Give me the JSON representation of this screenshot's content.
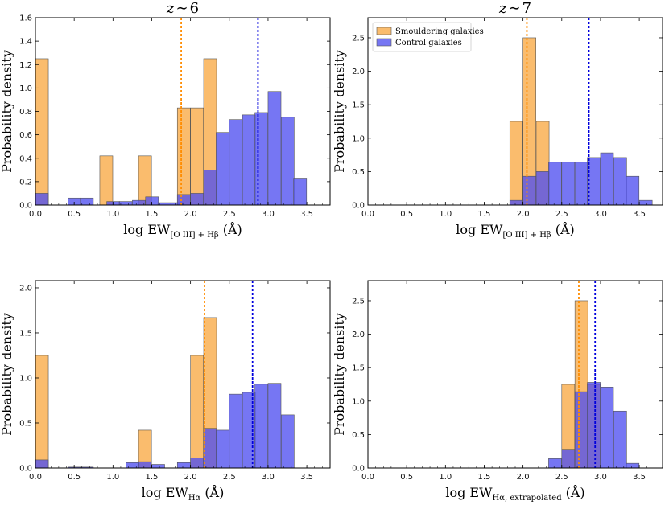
{
  "colors": {
    "smouldering_fill": "#f8a63c",
    "control_fill": "#5050f0",
    "smouldering_line": "#ff8c00",
    "control_line": "#0000dd",
    "edge": "#555555"
  },
  "chart_data": [
    {
      "type": "histogram",
      "title_prefix": "z",
      "title_sym": "∼",
      "title_value": "6",
      "ylabel": "Probability density",
      "xlabel": {
        "main": "log EW",
        "sub": "[O III] + Hβ",
        "unit": "(Å)"
      },
      "xlim": [
        0,
        3.8
      ],
      "ylim": [
        0,
        1.6
      ],
      "xticks": [
        "0.0",
        "0.5",
        "1.0",
        "1.5",
        "2.0",
        "2.5",
        "3.0",
        "3.5"
      ],
      "yticks": [
        "0.0",
        "0.2",
        "0.4",
        "0.6",
        "0.8",
        "1.0",
        "1.2",
        "1.4",
        "1.6"
      ],
      "bin_width": 0.1667,
      "series": [
        {
          "name": "Smouldering galaxies",
          "bins": [
            {
              "x0": 0.0,
              "h": 1.25
            },
            {
              "x0": 0.83,
              "h": 0.42
            },
            {
              "x0": 1.33,
              "h": 0.42
            },
            {
              "x0": 1.83,
              "h": 0.83
            },
            {
              "x0": 2.0,
              "h": 0.83
            },
            {
              "x0": 2.17,
              "h": 1.25
            }
          ],
          "median": 1.88
        },
        {
          "name": "Control galaxies",
          "bins": [
            {
              "x0": 0.0,
              "h": 0.1
            },
            {
              "x0": 0.42,
              "h": 0.06
            },
            {
              "x0": 0.58,
              "h": 0.06
            },
            {
              "x0": 0.92,
              "h": 0.03
            },
            {
              "x0": 1.08,
              "h": 0.03
            },
            {
              "x0": 1.25,
              "h": 0.04
            },
            {
              "x0": 1.42,
              "h": 0.07
            },
            {
              "x0": 1.58,
              "h": 0.02
            },
            {
              "x0": 1.75,
              "h": 0.02
            },
            {
              "x0": 1.83,
              "h": 0.09
            },
            {
              "x0": 2.0,
              "h": 0.1
            },
            {
              "x0": 2.17,
              "h": 0.3
            },
            {
              "x0": 2.33,
              "h": 0.62
            },
            {
              "x0": 2.5,
              "h": 0.73
            },
            {
              "x0": 2.67,
              "h": 0.77
            },
            {
              "x0": 2.83,
              "h": 0.79
            },
            {
              "x0": 3.0,
              "h": 0.97
            },
            {
              "x0": 3.17,
              "h": 0.75
            },
            {
              "x0": 3.33,
              "h": 0.23
            }
          ],
          "median": 2.87
        }
      ]
    },
    {
      "type": "histogram",
      "title_prefix": "z",
      "title_sym": "∼",
      "title_value": "7",
      "ylabel": "Probability density",
      "xlabel": {
        "main": "log EW",
        "sub": "[O III] + Hβ",
        "unit": "(Å)"
      },
      "xlim": [
        0,
        3.8
      ],
      "ylim": [
        0,
        2.8
      ],
      "xticks": [
        "0.0",
        "0.5",
        "1.0",
        "1.5",
        "2.0",
        "2.5",
        "3.0",
        "3.5"
      ],
      "yticks": [
        "0.0",
        "0.5",
        "1.0",
        "1.5",
        "2.0",
        "2.5"
      ],
      "bin_width": 0.1667,
      "legend": {
        "location": "top-left",
        "entries": [
          "Smouldering galaxies",
          "Control galaxies"
        ]
      },
      "series": [
        {
          "name": "Smouldering galaxies",
          "bins": [
            {
              "x0": 1.83,
              "h": 1.25
            },
            {
              "x0": 2.0,
              "h": 2.5
            },
            {
              "x0": 2.17,
              "h": 1.25
            }
          ],
          "median": 2.05
        },
        {
          "name": "Control galaxies",
          "bins": [
            {
              "x0": 1.83,
              "h": 0.07
            },
            {
              "x0": 2.0,
              "h": 0.43
            },
            {
              "x0": 2.17,
              "h": 0.5
            },
            {
              "x0": 2.33,
              "h": 0.64
            },
            {
              "x0": 2.5,
              "h": 0.64
            },
            {
              "x0": 2.67,
              "h": 0.64
            },
            {
              "x0": 2.83,
              "h": 0.71
            },
            {
              "x0": 3.0,
              "h": 0.78
            },
            {
              "x0": 3.17,
              "h": 0.71
            },
            {
              "x0": 3.33,
              "h": 0.43
            },
            {
              "x0": 3.5,
              "h": 0.07
            }
          ],
          "median": 2.85
        }
      ]
    },
    {
      "type": "histogram",
      "ylabel": "Probability density",
      "xlabel": {
        "main": "log EW",
        "sub": "Hα",
        "unit": "(Å)"
      },
      "xlim": [
        0,
        3.8
      ],
      "ylim": [
        0,
        2.08
      ],
      "xticks": [
        "0.0",
        "0.5",
        "1.0",
        "1.5",
        "2.0",
        "2.5",
        "3.0",
        "3.5"
      ],
      "yticks": [
        "0.0",
        "0.5",
        "1.0",
        "1.5",
        "2.0"
      ],
      "bin_width": 0.1667,
      "series": [
        {
          "name": "Smouldering galaxies",
          "bins": [
            {
              "x0": 0.0,
              "h": 1.25
            },
            {
              "x0": 1.33,
              "h": 0.42
            },
            {
              "x0": 2.0,
              "h": 1.25
            },
            {
              "x0": 2.17,
              "h": 1.67
            }
          ],
          "median": 2.18
        },
        {
          "name": "Control galaxies",
          "bins": [
            {
              "x0": 0.0,
              "h": 0.09
            },
            {
              "x0": 0.42,
              "h": 0.01
            },
            {
              "x0": 0.58,
              "h": 0.01
            },
            {
              "x0": 1.17,
              "h": 0.06
            },
            {
              "x0": 1.33,
              "h": 0.07
            },
            {
              "x0": 1.5,
              "h": 0.04
            },
            {
              "x0": 1.83,
              "h": 0.06
            },
            {
              "x0": 2.0,
              "h": 0.11
            },
            {
              "x0": 2.17,
              "h": 0.44
            },
            {
              "x0": 2.33,
              "h": 0.42
            },
            {
              "x0": 2.5,
              "h": 0.82
            },
            {
              "x0": 2.67,
              "h": 0.84
            },
            {
              "x0": 2.83,
              "h": 0.93
            },
            {
              "x0": 3.0,
              "h": 0.94
            },
            {
              "x0": 3.17,
              "h": 0.59
            }
          ],
          "median": 2.8
        }
      ]
    },
    {
      "type": "histogram",
      "ylabel": "Probability density",
      "xlabel": {
        "main": "log EW",
        "sub": "Hα, extrapolated",
        "unit": "(Å)"
      },
      "xlim": [
        0,
        3.8
      ],
      "ylim": [
        0,
        2.8
      ],
      "xticks": [
        "0.0",
        "0.5",
        "1.0",
        "1.5",
        "2.0",
        "2.5",
        "3.0",
        "3.5"
      ],
      "yticks": [
        "0.0",
        "0.5",
        "1.0",
        "1.5",
        "2.0",
        "2.5"
      ],
      "bin_width": 0.1667,
      "series": [
        {
          "name": "Smouldering galaxies",
          "bins": [
            {
              "x0": 2.5,
              "h": 1.25
            },
            {
              "x0": 2.67,
              "h": 2.5
            },
            {
              "x0": 2.83,
              "h": 1.25
            }
          ],
          "median": 2.72
        },
        {
          "name": "Control galaxies",
          "bins": [
            {
              "x0": 2.33,
              "h": 0.14
            },
            {
              "x0": 2.5,
              "h": 0.28
            },
            {
              "x0": 2.67,
              "h": 1.14
            },
            {
              "x0": 2.83,
              "h": 1.28
            },
            {
              "x0": 3.0,
              "h": 1.21
            },
            {
              "x0": 3.17,
              "h": 0.85
            },
            {
              "x0": 3.33,
              "h": 0.07
            }
          ],
          "median": 2.93
        }
      ]
    }
  ]
}
